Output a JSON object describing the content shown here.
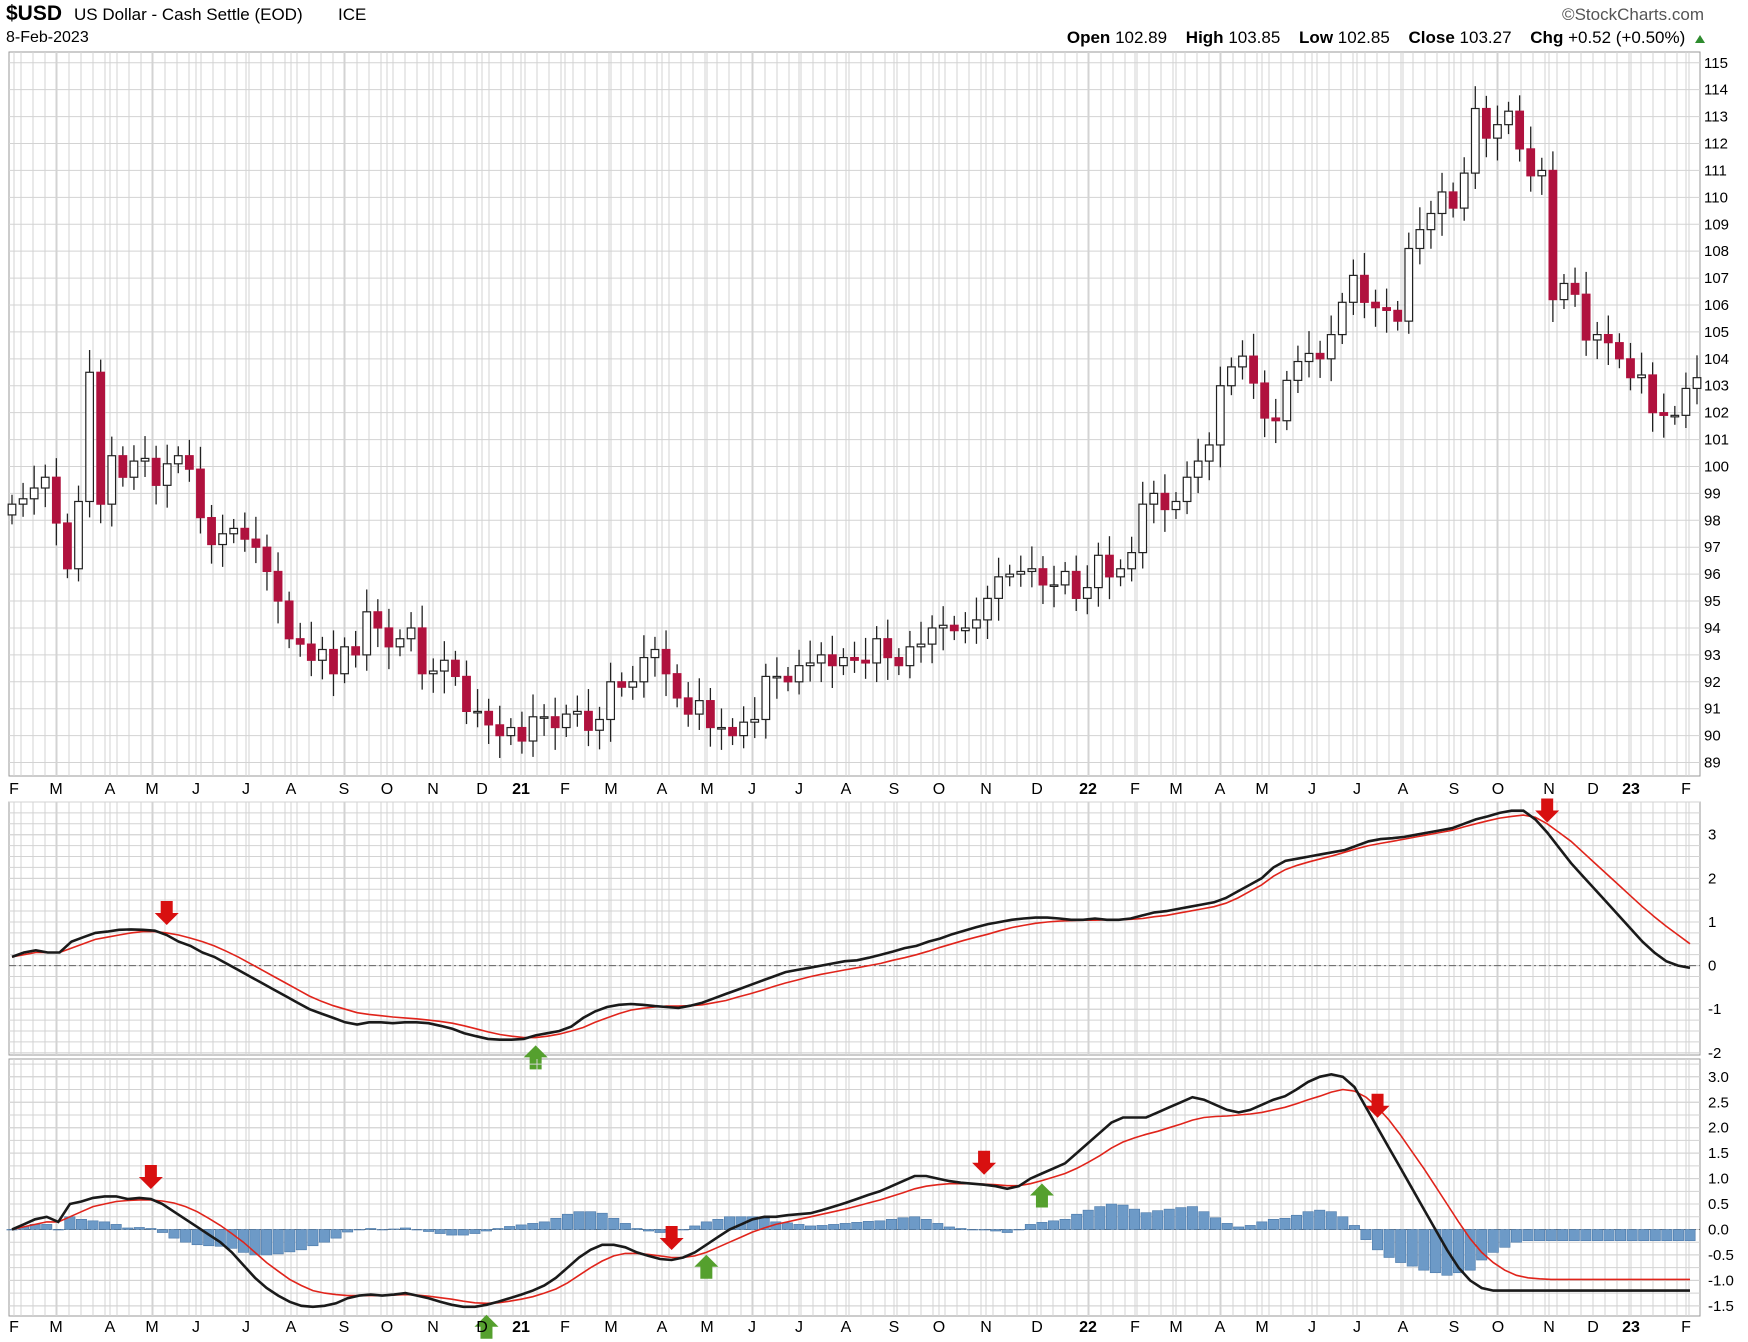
{
  "header": {
    "symbol": "$USD",
    "name": "US Dollar - Cash Settle (EOD)",
    "exchange": "ICE",
    "date": "8-Feb-2023",
    "logo_text": "©StockCharts.com",
    "open_label": "Open",
    "open": "102.89",
    "high_label": "High",
    "high": "103.85",
    "low_label": "Low",
    "low": "102.85",
    "close_label": "Close",
    "close": "103.27",
    "chg_label": "Chg",
    "chg": "+0.52 (+0.50%)",
    "chg_icon": "up-triangle-icon"
  },
  "colors": {
    "up_candle": "#ffffff",
    "down_candle": "#b0123e",
    "line_main": "#1a1a1a",
    "line_signal": "#e0241b",
    "histogram": "#6d9ac7",
    "buy_arrow": "#55a02e",
    "sell_arrow": "#d81010",
    "grid": "#d3d3d3"
  },
  "chart_data": [
    {
      "type": "candlestick",
      "title": "$USD US Dollar - Cash Settle (EOD)",
      "y_ticks": [
        89,
        90,
        91,
        92,
        93,
        94,
        95,
        96,
        97,
        98,
        99,
        100,
        101,
        102,
        103,
        104,
        105,
        106,
        107,
        108,
        109,
        110,
        111,
        112,
        113,
        114,
        115
      ],
      "ylim": [
        88.5,
        115.4
      ],
      "x_labels": [
        "F",
        "M",
        "A",
        "M",
        "J",
        "J",
        "A",
        "S",
        "O",
        "N",
        "D",
        "21",
        "F",
        "M",
        "A",
        "M",
        "J",
        "J",
        "A",
        "S",
        "O",
        "N",
        "D",
        "22",
        "F",
        "M",
        "A",
        "M",
        "J",
        "J",
        "A",
        "S",
        "O",
        "N",
        "D",
        "23",
        "F"
      ],
      "weekly_close": [
        98.6,
        98.8,
        99.2,
        99.6,
        97.9,
        96.2,
        98.7,
        103.5,
        98.6,
        100.4,
        99.6,
        100.2,
        100.3,
        99.3,
        100.1,
        100.4,
        99.9,
        98.1,
        97.1,
        97.5,
        97.7,
        97.3,
        97.0,
        96.1,
        95.0,
        93.6,
        93.4,
        92.8,
        93.2,
        92.3,
        93.3,
        93.0,
        94.6,
        94.0,
        93.3,
        93.6,
        94.0,
        92.3,
        92.4,
        92.8,
        92.2,
        90.9,
        90.9,
        90.4,
        90.0,
        90.3,
        89.8,
        90.7,
        90.7,
        90.3,
        90.8,
        90.9,
        90.2,
        90.6,
        92.0,
        91.8,
        92.0,
        92.9,
        93.2,
        92.3,
        91.4,
        90.8,
        91.3,
        90.3,
        90.3,
        90.0,
        90.5,
        90.6,
        92.2,
        92.2,
        92.0,
        92.6,
        92.7,
        93.0,
        92.6,
        92.9,
        92.8,
        92.7,
        93.6,
        92.9,
        92.6,
        93.3,
        93.4,
        94.0,
        94.1,
        93.9,
        94.0,
        94.3,
        95.1,
        95.9,
        96.0,
        96.1,
        96.2,
        95.6,
        95.6,
        96.1,
        95.1,
        95.5,
        96.7,
        95.9,
        96.2,
        96.8,
        98.6,
        99.0,
        98.4,
        98.7,
        99.6,
        100.2,
        100.8,
        103.0,
        103.7,
        104.1,
        103.1,
        101.8,
        101.7,
        103.2,
        103.9,
        104.2,
        104.0,
        104.9,
        106.1,
        107.1,
        106.1,
        105.9,
        105.8,
        105.4,
        108.1,
        108.8,
        109.4,
        110.2,
        109.6,
        110.9,
        113.3,
        112.2,
        112.7,
        113.2,
        111.8,
        110.8,
        111.0,
        106.2,
        106.8,
        106.4,
        104.7,
        104.9,
        104.6,
        104.0,
        103.3,
        103.4,
        102.0,
        101.9,
        101.9,
        102.9,
        103.3
      ]
    },
    {
      "type": "line",
      "y_ticks": [
        -2,
        -1,
        0,
        1,
        2,
        3
      ],
      "ylim": [
        -2.05,
        3.75
      ],
      "series": [
        {
          "role": "main",
          "values": [
            0.2,
            0.3,
            0.35,
            0.3,
            0.3,
            0.55,
            0.65,
            0.75,
            0.78,
            0.82,
            0.83,
            0.82,
            0.8,
            0.7,
            0.55,
            0.45,
            0.3,
            0.2,
            0.05,
            -0.1,
            -0.25,
            -0.4,
            -0.55,
            -0.7,
            -0.85,
            -1.0,
            -1.1,
            -1.2,
            -1.3,
            -1.35,
            -1.3,
            -1.3,
            -1.32,
            -1.3,
            -1.3,
            -1.32,
            -1.38,
            -1.45,
            -1.55,
            -1.62,
            -1.68,
            -1.7,
            -1.7,
            -1.68,
            -1.6,
            -1.55,
            -1.5,
            -1.4,
            -1.2,
            -1.05,
            -0.95,
            -0.9,
            -0.88,
            -0.9,
            -0.93,
            -0.95,
            -0.97,
            -0.92,
            -0.85,
            -0.75,
            -0.65,
            -0.55,
            -0.45,
            -0.35,
            -0.25,
            -0.15,
            -0.1,
            -0.05,
            0.0,
            0.05,
            0.1,
            0.12,
            0.18,
            0.25,
            0.32,
            0.4,
            0.45,
            0.55,
            0.62,
            0.72,
            0.8,
            0.88,
            0.95,
            1.0,
            1.05,
            1.08,
            1.1,
            1.1,
            1.08,
            1.05,
            1.05,
            1.08,
            1.05,
            1.05,
            1.08,
            1.15,
            1.22,
            1.25,
            1.3,
            1.35,
            1.4,
            1.45,
            1.55,
            1.7,
            1.85,
            2.0,
            2.25,
            2.4,
            2.45,
            2.5,
            2.55,
            2.6,
            2.65,
            2.75,
            2.85,
            2.9,
            2.92,
            2.95,
            3.0,
            3.05,
            3.1,
            3.15,
            3.25,
            3.35,
            3.42,
            3.5,
            3.55,
            3.55,
            3.35,
            3.05,
            2.7,
            2.35,
            2.05,
            1.75,
            1.45,
            1.15,
            0.85,
            0.55,
            0.3,
            0.1,
            0.0,
            -0.05
          ]
        },
        {
          "role": "signal",
          "values": [
            0.2,
            0.25,
            0.3,
            0.3,
            0.3,
            0.4,
            0.5,
            0.6,
            0.65,
            0.7,
            0.75,
            0.78,
            0.78,
            0.75,
            0.7,
            0.63,
            0.55,
            0.45,
            0.33,
            0.2,
            0.05,
            -0.1,
            -0.25,
            -0.4,
            -0.55,
            -0.7,
            -0.82,
            -0.92,
            -1.0,
            -1.08,
            -1.12,
            -1.15,
            -1.18,
            -1.2,
            -1.22,
            -1.25,
            -1.28,
            -1.32,
            -1.38,
            -1.45,
            -1.52,
            -1.58,
            -1.62,
            -1.65,
            -1.65,
            -1.62,
            -1.57,
            -1.5,
            -1.42,
            -1.3,
            -1.2,
            -1.1,
            -1.02,
            -0.98,
            -0.95,
            -0.93,
            -0.93,
            -0.92,
            -0.9,
            -0.85,
            -0.8,
            -0.72,
            -0.65,
            -0.57,
            -0.48,
            -0.4,
            -0.33,
            -0.26,
            -0.2,
            -0.15,
            -0.1,
            -0.05,
            0.0,
            0.05,
            0.12,
            0.18,
            0.25,
            0.33,
            0.42,
            0.5,
            0.58,
            0.65,
            0.72,
            0.8,
            0.87,
            0.92,
            0.97,
            1.0,
            1.02,
            1.03,
            1.04,
            1.04,
            1.05,
            1.05,
            1.06,
            1.08,
            1.12,
            1.15,
            1.2,
            1.25,
            1.3,
            1.35,
            1.43,
            1.55,
            1.7,
            1.85,
            2.05,
            2.2,
            2.3,
            2.38,
            2.45,
            2.52,
            2.6,
            2.68,
            2.75,
            2.8,
            2.85,
            2.9,
            2.95,
            3.0,
            3.05,
            3.1,
            3.18,
            3.25,
            3.32,
            3.38,
            3.42,
            3.45,
            3.4,
            3.25,
            3.05,
            2.85,
            2.6,
            2.35,
            2.1,
            1.85,
            1.6,
            1.35,
            1.12,
            0.9,
            0.7,
            0.5
          ]
        }
      ],
      "markers": [
        {
          "dir": "down",
          "index": 13
        },
        {
          "dir": "up",
          "index": 44
        },
        {
          "dir": "down",
          "index": 129
        }
      ]
    },
    {
      "type": "line",
      "y_ticks": [
        -1.5,
        -1.0,
        -0.5,
        0.0,
        0.5,
        1.0,
        1.5,
        2.0,
        2.5,
        3.0
      ],
      "ylim": [
        -1.7,
        3.35
      ],
      "series": [
        {
          "role": "main",
          "values": [
            0.0,
            0.1,
            0.2,
            0.25,
            0.15,
            0.5,
            0.55,
            0.62,
            0.65,
            0.65,
            0.6,
            0.62,
            0.6,
            0.5,
            0.35,
            0.2,
            0.05,
            -0.1,
            -0.25,
            -0.45,
            -0.7,
            -0.95,
            -1.15,
            -1.3,
            -1.42,
            -1.5,
            -1.52,
            -1.5,
            -1.45,
            -1.35,
            -1.3,
            -1.28,
            -1.3,
            -1.28,
            -1.25,
            -1.3,
            -1.35,
            -1.42,
            -1.48,
            -1.52,
            -1.52,
            -1.48,
            -1.42,
            -1.35,
            -1.28,
            -1.2,
            -1.1,
            -0.95,
            -0.75,
            -0.55,
            -0.4,
            -0.3,
            -0.3,
            -0.35,
            -0.45,
            -0.52,
            -0.58,
            -0.6,
            -0.55,
            -0.45,
            -0.3,
            -0.15,
            0.0,
            0.1,
            0.2,
            0.25,
            0.25,
            0.28,
            0.3,
            0.32,
            0.38,
            0.45,
            0.52,
            0.6,
            0.68,
            0.75,
            0.85,
            0.95,
            1.05,
            1.05,
            1.0,
            0.95,
            0.92,
            0.9,
            0.88,
            0.85,
            0.8,
            0.85,
            1.0,
            1.1,
            1.2,
            1.3,
            1.5,
            1.7,
            1.9,
            2.1,
            2.2,
            2.2,
            2.2,
            2.3,
            2.4,
            2.5,
            2.6,
            2.55,
            2.45,
            2.35,
            2.3,
            2.35,
            2.45,
            2.55,
            2.62,
            2.75,
            2.9,
            3.0,
            3.05,
            3.0,
            2.8,
            2.4,
            2.0,
            1.6,
            1.2,
            0.8,
            0.4,
            0.0,
            -0.4,
            -0.75,
            -1.0,
            -1.15,
            -1.2,
            -1.2,
            -1.2,
            -1.2,
            -1.2,
            -1.2,
            -1.2,
            -1.2,
            -1.2,
            -1.2,
            -1.2,
            -1.2,
            -1.2,
            -1.2,
            -1.2,
            -1.2,
            -1.2,
            -1.2
          ]
        },
        {
          "role": "signal",
          "values": [
            0.0,
            0.05,
            0.1,
            0.15,
            0.15,
            0.25,
            0.35,
            0.45,
            0.5,
            0.55,
            0.57,
            0.58,
            0.58,
            0.56,
            0.52,
            0.45,
            0.35,
            0.22,
            0.08,
            -0.08,
            -0.25,
            -0.45,
            -0.65,
            -0.82,
            -0.98,
            -1.1,
            -1.2,
            -1.25,
            -1.28,
            -1.3,
            -1.3,
            -1.3,
            -1.3,
            -1.29,
            -1.28,
            -1.29,
            -1.31,
            -1.34,
            -1.37,
            -1.41,
            -1.44,
            -1.45,
            -1.44,
            -1.41,
            -1.37,
            -1.32,
            -1.25,
            -1.17,
            -1.05,
            -0.9,
            -0.75,
            -0.62,
            -0.52,
            -0.47,
            -0.47,
            -0.49,
            -0.52,
            -0.55,
            -0.55,
            -0.52,
            -0.45,
            -0.35,
            -0.25,
            -0.15,
            -0.05,
            0.03,
            0.1,
            0.15,
            0.2,
            0.25,
            0.3,
            0.35,
            0.4,
            0.46,
            0.52,
            0.58,
            0.65,
            0.72,
            0.8,
            0.85,
            0.88,
            0.9,
            0.9,
            0.9,
            0.89,
            0.88,
            0.86,
            0.86,
            0.9,
            0.96,
            1.03,
            1.1,
            1.2,
            1.32,
            1.45,
            1.6,
            1.72,
            1.8,
            1.87,
            1.93,
            2.0,
            2.07,
            2.15,
            2.2,
            2.22,
            2.23,
            2.25,
            2.27,
            2.3,
            2.35,
            2.4,
            2.47,
            2.55,
            2.62,
            2.7,
            2.75,
            2.72,
            2.6,
            2.4,
            2.15,
            1.85,
            1.52,
            1.2,
            0.85,
            0.5,
            0.15,
            -0.18,
            -0.45,
            -0.65,
            -0.8,
            -0.9,
            -0.95,
            -0.97,
            -0.98,
            -0.98,
            -0.98,
            -0.98,
            -0.98,
            -0.98,
            -0.98,
            -0.98,
            -0.98,
            -0.98,
            -0.98,
            -0.98,
            -0.98
          ]
        },
        {
          "role": "histogram",
          "values": [
            0.0,
            0.05,
            0.1,
            0.1,
            0.0,
            0.25,
            0.2,
            0.17,
            0.15,
            0.1,
            0.03,
            0.04,
            0.02,
            -0.06,
            -0.17,
            -0.25,
            -0.3,
            -0.32,
            -0.33,
            -0.37,
            -0.45,
            -0.5,
            -0.5,
            -0.48,
            -0.44,
            -0.4,
            -0.32,
            -0.25,
            -0.17,
            -0.05,
            0.0,
            0.02,
            0.0,
            0.01,
            0.03,
            -0.01,
            -0.04,
            -0.08,
            -0.11,
            -0.11,
            -0.08,
            -0.03,
            0.02,
            0.06,
            0.09,
            0.12,
            0.15,
            0.22,
            0.3,
            0.35,
            0.35,
            0.32,
            0.22,
            0.12,
            0.02,
            -0.03,
            -0.06,
            -0.05,
            0.0,
            0.07,
            0.15,
            0.2,
            0.25,
            0.25,
            0.25,
            0.22,
            0.15,
            0.13,
            0.1,
            0.07,
            0.08,
            0.1,
            0.12,
            0.14,
            0.16,
            0.17,
            0.2,
            0.23,
            0.25,
            0.2,
            0.12,
            0.05,
            0.02,
            0.0,
            -0.01,
            -0.03,
            -0.06,
            -0.01,
            0.1,
            0.14,
            0.17,
            0.2,
            0.3,
            0.38,
            0.45,
            0.5,
            0.48,
            0.4,
            0.33,
            0.37,
            0.4,
            0.43,
            0.45,
            0.35,
            0.23,
            0.12,
            0.05,
            0.08,
            0.15,
            0.2,
            0.22,
            0.28,
            0.35,
            0.38,
            0.35,
            0.25,
            0.08,
            -0.2,
            -0.4,
            -0.55,
            -0.65,
            -0.72,
            -0.8,
            -0.85,
            -0.9,
            -0.85,
            -0.8,
            -0.6,
            -0.45,
            -0.35,
            -0.25,
            -0.22,
            -0.22,
            -0.22,
            -0.22,
            -0.22,
            -0.22,
            -0.22,
            -0.22,
            -0.22,
            -0.22,
            -0.22,
            -0.22,
            -0.22,
            -0.22,
            -0.22
          ]
        }
      ],
      "markers": [
        {
          "dir": "down",
          "index": 12
        },
        {
          "dir": "up",
          "index": 41
        },
        {
          "dir": "down",
          "index": 57
        },
        {
          "dir": "up",
          "index": 60
        },
        {
          "dir": "down",
          "index": 84
        },
        {
          "dir": "up",
          "index": 89
        },
        {
          "dir": "down",
          "index": 118
        }
      ]
    }
  ]
}
